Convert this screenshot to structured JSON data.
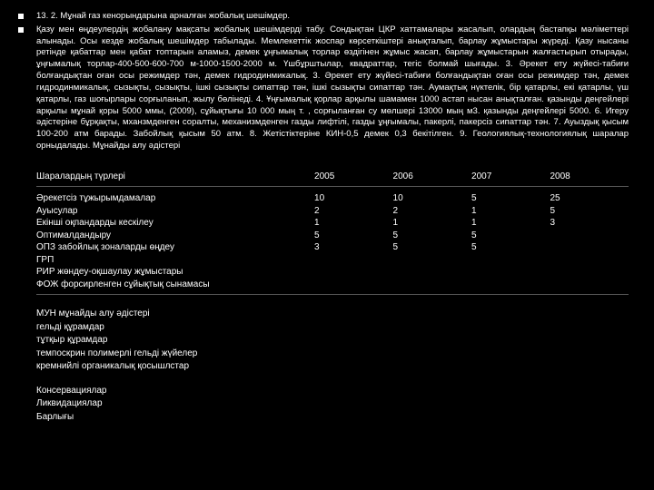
{
  "bullets": [
    "13. 2. Мұнай газ кенорындарына арналған жобалық шешімдер.",
    "Қазу мен өңдеулердің жобалану мақсаты жобалық шешімдерді табу. Сондықтан ЦКР хаттамалары жасалып, олардың бастапқы мәліметтері алынады. Осы кезде жобалық шешімдер табылады. Мемлекеттік жоспар көрсеткіштері анықталып, барлау жұмыстары жүреді. Қазу нысаны ретінде қабаттар мен қабат топтарын аламыз, демек ұңғымалық торлар өздігінен жұмыс жасап, барлау жұмыстарын жалғастырып отырады, ұңғымалық торлар-400-500-600-700 м-1000-1500-2000 м. Үшбұрштылар, квадраттар, тегіс болмай шығады. 3. Әрекет ету жүйесі-табиғи болғандықтан оған осы режимдер тән, демек гидродинмикалық. 3. Әрекет ету жүйесі-табиғи болғандықтан оған осы режимдер тән, демек гидродинмикалық, сызықты, сызықты, ішкі сызықты сипаттар тән, ішкі сызықты сипаттар тән. Аумақтық нүктелік, бір қатарлы, екі қатарлы, үш қатарлы, газ шоғырлары сорғыланып, жылу бөлінеді. 4. Ұңғымалық қорлар арқылы шамамен 1000 астап нысан анықталған. қазынды деңгейлері арқылы мұнай қоры 5000 ммы, (2009), сұйықтығы 10 000 мың т. , сорғыланған су мөлшері 13000 мың м3. қазынды деңгейлері 5000. 6. Игеру әдістеріне бұрқақты, мханзмденген соралты, механизмденген газды лифтілі, газды ұңғымалы, пакерлі, пакерсіз сипаттар тән. 7. Ауыздық қысым 100-200 атм барады. Забойлық қысым 50 атм. 8. Жетістіктеріне КИН-0,5 демек 0,3 бекітілген. 9. Геологиялық-технологиялық шаралар орныдалады. Мұнайды алу әдістері"
  ],
  "table": {
    "headers": [
      "Шаралардың түрлері",
      "2005",
      "2006",
      "2007",
      "2008"
    ],
    "col0": [
      "Әрекетсіз тұжырымдамалар",
      "Ауысулар",
      "Екінші оқпандарды кескілеу",
      "Оптималдандыру",
      "ОПЗ забойлық зоналарды өңдеу",
      "ГРП",
      "РИР жөндеу-оқшаулау жұмыстары",
      "ФОЖ форсирленген сұйықтық сынамасы"
    ],
    "col1": [
      "10",
      "2",
      "1",
      "5",
      "3"
    ],
    "col2": [
      "10",
      "2",
      "1",
      "5",
      "5"
    ],
    "col3": [
      "5",
      "1",
      "1",
      "5",
      "5"
    ],
    "col4": [
      "25",
      "5",
      "3"
    ]
  },
  "group1": [
    "МУН мұнайды алу әдістері",
    "гельді құрамдар",
    "тұтқыр құрамдар",
    "темпоскрин полимерлі гельді жүйелер",
    "кремнийлі органикалық қосышлстар"
  ],
  "group2": [
    "Консервациялар",
    "Ликвидациялар",
    "Барлығы"
  ]
}
